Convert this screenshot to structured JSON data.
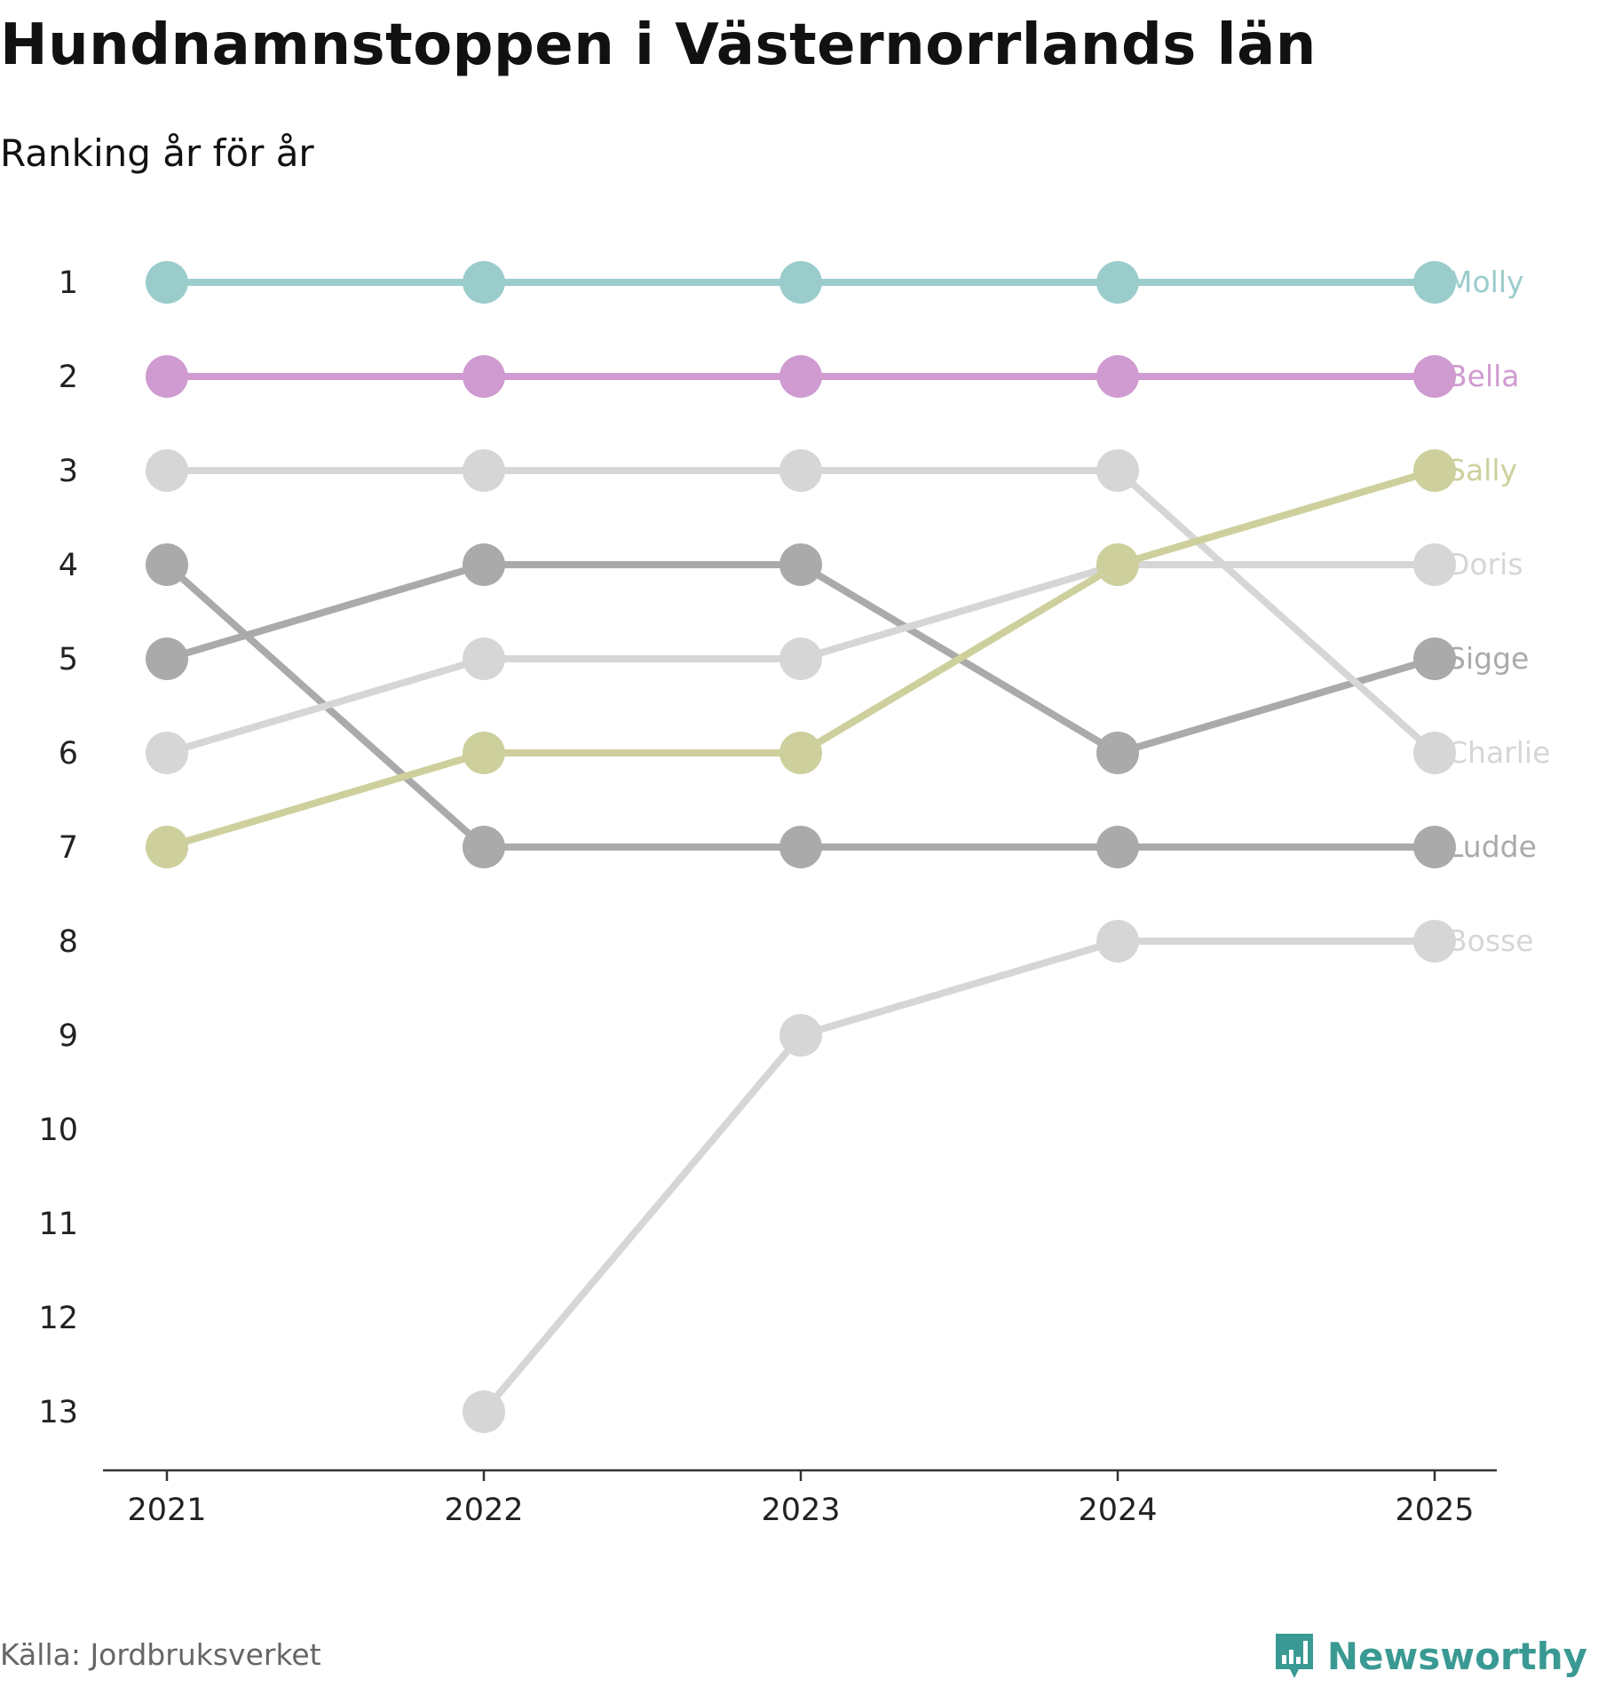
{
  "title": "Hundnamnstoppen i Västernorrlands län",
  "subtitle": "Ranking år för år",
  "source": "Källa: Jordbruksverket",
  "brand": {
    "name": "Newsworthy",
    "icon": "bar-chart-speech-icon",
    "color": "#3a9a93"
  },
  "chart_data": {
    "type": "line",
    "chart_kind": "bump",
    "title": "Hundnamnstoppen i Västernorrlands län",
    "subtitle": "Ranking år för år",
    "xlabel": "",
    "ylabel": "",
    "x": [
      "2021",
      "2022",
      "2023",
      "2024",
      "2025"
    ],
    "y_ticks": [
      "1",
      "2",
      "3",
      "4",
      "5",
      "6",
      "7",
      "8",
      "9",
      "10",
      "11",
      "12",
      "13"
    ],
    "ylim": [
      1,
      13
    ],
    "y_inverted": true,
    "grid": false,
    "legend": "direct labels at right end",
    "series": [
      {
        "name": "Ludde",
        "color": "#aaaaaa",
        "values": [
          4,
          7,
          7,
          7,
          7
        ]
      },
      {
        "name": "Sigge",
        "color": "#aaaaaa",
        "values": [
          5,
          4,
          4,
          6,
          5
        ]
      },
      {
        "name": "Charlie",
        "color": "#d6d6d6",
        "values": [
          3,
          3,
          3,
          3,
          6
        ]
      },
      {
        "name": "Doris",
        "color": "#d6d6d6",
        "values": [
          6,
          5,
          5,
          4,
          4
        ]
      },
      {
        "name": "Bosse",
        "color": "#d6d6d6",
        "values": [
          null,
          13,
          9,
          8,
          8
        ]
      },
      {
        "name": "Sally",
        "color": "#cdd09c",
        "values": [
          7,
          6,
          6,
          4,
          3
        ]
      },
      {
        "name": "Bella",
        "color": "#cf9bd0",
        "values": [
          2,
          2,
          2,
          2,
          2
        ]
      },
      {
        "name": "Molly",
        "color": "#9bcccc",
        "values": [
          1,
          1,
          1,
          1,
          1
        ]
      }
    ]
  }
}
